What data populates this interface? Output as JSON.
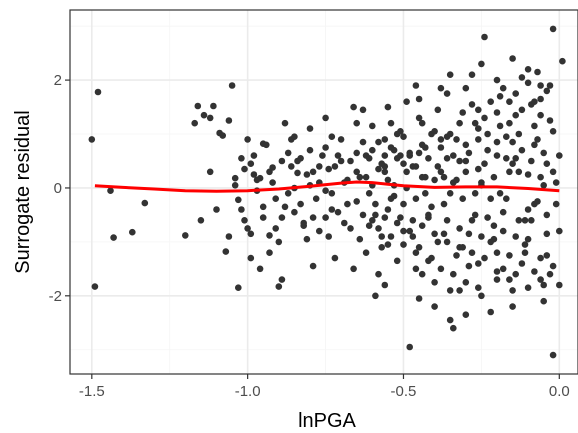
{
  "chart_data": {
    "type": "scatter",
    "xlabel": "lnPGA",
    "ylabel": "Surrogate residual",
    "xlim": [
      -1.57,
      0.06
    ],
    "ylim": [
      -3.45,
      3.3
    ],
    "x_ticks": [
      -1.5,
      -1.0,
      -0.5,
      0.0
    ],
    "x_tick_labels": [
      "-1.5",
      "-1.0",
      "-0.5",
      "0.0"
    ],
    "y_ticks": [
      -2,
      0,
      2
    ],
    "y_tick_labels": [
      "-2",
      "0",
      "2"
    ],
    "grid": true,
    "legend": "none",
    "colors": {
      "points": "#333333",
      "smooth": "#ff0000",
      "grid_major": "#ebebeb",
      "grid_minor": "#f5f5f5",
      "frame": "#333333"
    },
    "points": [
      [
        -1.5,
        0.9
      ],
      [
        -1.48,
        1.78
      ],
      [
        -1.49,
        -1.83
      ],
      [
        -1.44,
        -0.05
      ],
      [
        -1.43,
        -0.92
      ],
      [
        -1.37,
        -0.82
      ],
      [
        -1.33,
        -0.28
      ],
      [
        -1.2,
        -0.88
      ],
      [
        -1.17,
        1.2
      ],
      [
        -1.16,
        1.52
      ],
      [
        -1.14,
        1.35
      ],
      [
        -1.12,
        1.3
      ],
      [
        -1.11,
        1.52
      ],
      [
        -1.1,
        -0.4
      ],
      [
        -1.09,
        1.02
      ],
      [
        -1.08,
        0.97
      ],
      [
        -1.07,
        -1.18
      ],
      [
        -1.06,
        1.25
      ],
      [
        -1.05,
        1.9
      ],
      [
        -1.04,
        0.18
      ],
      [
        -1.03,
        -0.22
      ],
      [
        -1.02,
        0.55
      ],
      [
        -1.0,
        -0.75
      ],
      [
        -0.99,
        -1.3
      ],
      [
        -0.98,
        0.6
      ],
      [
        -0.96,
        0.18
      ],
      [
        -0.95,
        0.82
      ],
      [
        -0.93,
        -0.88
      ],
      [
        -0.92,
        0.38
      ],
      [
        -0.9,
        -1.83
      ],
      [
        -0.89,
        -1.7
      ],
      [
        -0.88,
        -0.35
      ],
      [
        -0.86,
        0.9
      ],
      [
        -0.84,
        0.28
      ],
      [
        -0.82,
        -0.65
      ],
      [
        -0.8,
        0.7
      ],
      [
        -0.79,
        -1.45
      ],
      [
        -0.77,
        0.1
      ],
      [
        -0.75,
        -0.55
      ],
      [
        -0.73,
        0.95
      ],
      [
        -0.72,
        -1.3
      ],
      [
        -0.7,
        0.5
      ],
      [
        -0.68,
        -0.3
      ],
      [
        -0.66,
        1.5
      ],
      [
        -0.65,
        0.65
      ],
      [
        -0.64,
        -0.95
      ],
      [
        -0.63,
        1.45
      ],
      [
        -0.62,
        0.2
      ],
      [
        -0.61,
        -0.7
      ],
      [
        -0.6,
        1.15
      ],
      [
        -0.59,
        -2.0
      ],
      [
        -0.58,
        0.35
      ],
      [
        -0.57,
        -1.1
      ],
      [
        -0.56,
        0.9
      ],
      [
        -0.55,
        -0.4
      ],
      [
        -0.54,
        1.2
      ],
      [
        -0.53,
        0.05
      ],
      [
        -0.52,
        -1.35
      ],
      [
        -0.51,
        0.6
      ],
      [
        -0.5,
        -0.8
      ],
      [
        -0.49,
        1.6
      ],
      [
        -0.48,
        -2.95
      ],
      [
        -0.47,
        0.4
      ],
      [
        -0.46,
        -0.2
      ],
      [
        -0.45,
        1.3
      ],
      [
        -0.44,
        -1.6
      ],
      [
        -0.43,
        0.75
      ],
      [
        -0.42,
        -0.55
      ],
      [
        -0.41,
        1.0
      ],
      [
        -0.4,
        0.15
      ],
      [
        -0.39,
        -1.0
      ],
      [
        -0.38,
        1.85
      ],
      [
        -0.37,
        -0.3
      ],
      [
        -0.36,
        0.55
      ],
      [
        -0.35,
        -2.45
      ],
      [
        -0.34,
        -2.6
      ],
      [
        -0.33,
        0.9
      ],
      [
        -0.32,
        -0.75
      ],
      [
        -0.31,
        1.4
      ],
      [
        -0.3,
        0.3
      ],
      [
        -0.29,
        -1.45
      ],
      [
        -0.28,
        2.1
      ],
      [
        -0.27,
        -0.1
      ],
      [
        -0.26,
        1.1
      ],
      [
        -0.25,
        -0.9
      ],
      [
        -0.24,
        2.8
      ],
      [
        -0.23,
        0.7
      ],
      [
        -0.22,
        -2.3
      ],
      [
        -0.21,
        0.2
      ],
      [
        -0.2,
        -1.2
      ],
      [
        -0.19,
        1.7
      ],
      [
        -0.18,
        -0.45
      ],
      [
        -0.17,
        0.95
      ],
      [
        -0.16,
        -1.7
      ],
      [
        -0.15,
        0.45
      ],
      [
        -0.14,
        1.35
      ],
      [
        -0.13,
        -0.6
      ],
      [
        -0.12,
        2.05
      ],
      [
        -0.11,
        -1.05
      ],
      [
        -0.1,
        0.25
      ],
      [
        -0.09,
        1.55
      ],
      [
        -0.08,
        -0.3
      ],
      [
        -0.07,
        2.15
      ],
      [
        -0.06,
        -1.3
      ],
      [
        -0.05,
        0.65
      ],
      [
        -0.04,
        -0.85
      ],
      [
        -0.03,
        1.9
      ],
      [
        -0.02,
        -3.1
      ],
      [
        -0.01,
        0.1
      ],
      [
        0.0,
        -1.8
      ],
      [
        0.01,
        2.35
      ],
      [
        -0.02,
        2.95
      ],
      [
        -0.05,
        -1.8
      ],
      [
        -0.08,
        1.15
      ],
      [
        -0.11,
        -1.2
      ],
      [
        -0.14,
        0.55
      ],
      [
        -0.17,
        -0.2
      ],
      [
        -0.2,
        0.85
      ],
      [
        -0.23,
        -0.55
      ],
      [
        -0.26,
        0.35
      ],
      [
        -0.29,
        -0.85
      ],
      [
        -0.32,
        0.5
      ],
      [
        -0.35,
        -0.1
      ],
      [
        -0.38,
        0.75
      ],
      [
        -0.41,
        -0.35
      ],
      [
        -0.44,
        0.2
      ],
      [
        -0.47,
        -0.6
      ],
      [
        -0.5,
        0.45
      ],
      [
        -0.53,
        -0.15
      ],
      [
        -0.56,
        0.3
      ],
      [
        -0.59,
        -0.5
      ],
      [
        -0.62,
        0.6
      ],
      [
        -0.65,
        -0.25
      ],
      [
        -0.68,
        0.15
      ],
      [
        -0.71,
        -0.45
      ],
      [
        -0.74,
        0.35
      ],
      [
        -0.77,
        -0.8
      ],
      [
        -0.8,
        0.05
      ],
      [
        -0.83,
        -0.3
      ],
      [
        -0.86,
        0.4
      ],
      [
        -0.89,
        -0.55
      ],
      [
        -0.92,
        0.1
      ],
      [
        -0.95,
        -0.35
      ],
      [
        -0.98,
        0.25
      ],
      [
        -1.01,
        -0.6
      ],
      [
        -0.97,
        -0.05
      ],
      [
        -0.91,
        -0.2
      ],
      [
        -0.85,
        0.0
      ],
      [
        -0.79,
        0.3
      ],
      [
        -0.73,
        -0.1
      ],
      [
        -0.67,
        0.5
      ],
      [
        -0.61,
        -0.1
      ],
      [
        -0.55,
        0.15
      ],
      [
        -0.49,
        0.0
      ],
      [
        -0.43,
        -0.1
      ],
      [
        -0.37,
        0.2
      ],
      [
        -0.31,
        -0.2
      ],
      [
        -0.25,
        0.05
      ],
      [
        -0.19,
        -0.1
      ],
      [
        -0.13,
        0.3
      ],
      [
        -0.07,
        -0.25
      ],
      [
        -0.04,
        0.45
      ],
      [
        -0.09,
        -0.6
      ],
      [
        -0.15,
        0.85
      ],
      [
        -0.21,
        -0.95
      ],
      [
        -0.27,
        1.2
      ],
      [
        -0.33,
        -1.25
      ],
      [
        -0.39,
        1.45
      ],
      [
        -0.45,
        -1.1
      ],
      [
        -0.51,
        1.05
      ],
      [
        -0.57,
        -0.9
      ],
      [
        -0.63,
        0.85
      ],
      [
        -0.69,
        -0.65
      ],
      [
        -0.75,
        0.75
      ],
      [
        -0.81,
        -0.95
      ],
      [
        -0.87,
        0.65
      ],
      [
        -0.93,
        -1.2
      ],
      [
        -0.99,
        0.45
      ],
      [
        -0.6,
        0.7
      ],
      [
        -0.58,
        0.85
      ],
      [
        -0.56,
        0.6
      ],
      [
        -0.54,
        0.75
      ],
      [
        -0.52,
        0.55
      ],
      [
        -0.5,
        0.95
      ],
      [
        -0.48,
        0.65
      ],
      [
        -0.46,
        0.4
      ],
      [
        -0.44,
        0.8
      ],
      [
        -0.42,
        0.55
      ],
      [
        -0.4,
        1.05
      ],
      [
        -0.38,
        0.3
      ],
      [
        -0.36,
        0.95
      ],
      [
        -0.34,
        0.6
      ],
      [
        -0.32,
        1.2
      ],
      [
        -0.3,
        0.8
      ],
      [
        -0.28,
        1.55
      ],
      [
        -0.26,
        0.9
      ],
      [
        -0.24,
        1.3
      ],
      [
        -0.22,
        1.6
      ],
      [
        -0.2,
        1.4
      ],
      [
        -0.18,
        1.85
      ],
      [
        -0.16,
        1.2
      ],
      [
        -0.14,
        1.75
      ],
      [
        -0.12,
        1.45
      ],
      [
        -0.1,
        1.95
      ],
      [
        -0.08,
        1.6
      ],
      [
        -0.06,
        1.35
      ],
      [
        -0.04,
        1.8
      ],
      [
        -0.02,
        1.05
      ],
      [
        -0.6,
        -0.6
      ],
      [
        -0.58,
        -0.75
      ],
      [
        -0.56,
        -0.55
      ],
      [
        -0.54,
        -0.9
      ],
      [
        -0.52,
        -0.65
      ],
      [
        -0.5,
        -1.05
      ],
      [
        -0.48,
        -0.8
      ],
      [
        -0.46,
        -1.2
      ],
      [
        -0.44,
        -0.7
      ],
      [
        -0.42,
        -1.35
      ],
      [
        -0.4,
        -0.85
      ],
      [
        -0.38,
        -1.5
      ],
      [
        -0.36,
        -1.0
      ],
      [
        -0.34,
        -1.6
      ],
      [
        -0.32,
        -1.1
      ],
      [
        -0.3,
        -1.75
      ],
      [
        -0.28,
        -1.2
      ],
      [
        -0.26,
        -1.85
      ],
      [
        -0.24,
        -1.3
      ],
      [
        -0.22,
        -1.0
      ],
      [
        -0.2,
        -1.55
      ],
      [
        -0.18,
        -0.8
      ],
      [
        -0.16,
        -1.25
      ],
      [
        -0.14,
        -1.6
      ],
      [
        -0.12,
        -1.4
      ],
      [
        -0.1,
        -0.95
      ],
      [
        -0.08,
        -1.55
      ],
      [
        -0.06,
        -1.7
      ],
      [
        -0.04,
        -1.25
      ],
      [
        -0.02,
        -1.45
      ],
      [
        -0.7,
        0.9
      ],
      [
        -0.72,
        0.4
      ],
      [
        -0.74,
        -0.9
      ],
      [
        -0.76,
        0.6
      ],
      [
        -0.78,
        -0.2
      ],
      [
        -0.8,
        1.1
      ],
      [
        -0.82,
        -0.7
      ],
      [
        -0.84,
        0.5
      ],
      [
        -0.88,
        1.2
      ],
      [
        -0.9,
        -1.0
      ],
      [
        -0.94,
        0.8
      ],
      [
        -0.96,
        -1.5
      ],
      [
        -1.0,
        0.9
      ],
      [
        -1.03,
        -1.85
      ],
      [
        -1.06,
        -0.9
      ],
      [
        -1.12,
        0.3
      ],
      [
        -1.15,
        -0.6
      ],
      [
        -0.66,
        -1.5
      ],
      [
        -0.64,
        0.2
      ],
      [
        -0.62,
        -1.2
      ],
      [
        -0.6,
        0.05
      ],
      [
        -0.58,
        -1.6
      ],
      [
        -0.56,
        0.4
      ],
      [
        -0.54,
        -0.2
      ],
      [
        -0.52,
        1.0
      ],
      [
        -0.5,
        -0.3
      ],
      [
        -0.48,
        0.6
      ],
      [
        -0.46,
        -1.5
      ],
      [
        -0.44,
        1.2
      ],
      [
        -0.42,
        -0.5
      ],
      [
        -0.4,
        -1.75
      ],
      [
        -0.38,
        0.9
      ],
      [
        -0.36,
        -0.6
      ],
      [
        -0.34,
        0.1
      ],
      [
        -0.32,
        -1.9
      ],
      [
        -0.3,
        0.5
      ],
      [
        -0.28,
        -0.6
      ],
      [
        -0.26,
        -1.4
      ],
      [
        -0.24,
        0.45
      ],
      [
        -0.22,
        -0.2
      ],
      [
        -0.2,
        0.6
      ],
      [
        -0.18,
        -1.5
      ],
      [
        -0.16,
        0.3
      ],
      [
        -0.14,
        -0.9
      ],
      [
        -0.12,
        0.7
      ],
      [
        -0.1,
        -0.4
      ],
      [
        -0.08,
        0.8
      ],
      [
        -0.06,
        0.2
      ],
      [
        -0.04,
        -0.5
      ],
      [
        -0.02,
        0.3
      ],
      [
        0.0,
        -0.8
      ],
      [
        0.0,
        0.6
      ],
      [
        -0.01,
        -0.3
      ],
      [
        -0.03,
        1.25
      ],
      [
        -0.05,
        0.05
      ],
      [
        -0.07,
        0.9
      ],
      [
        -0.09,
        0.5
      ],
      [
        -0.11,
        -0.6
      ],
      [
        -0.13,
        1.0
      ],
      [
        -0.15,
        -1.9
      ],
      [
        -0.17,
        0.55
      ],
      [
        -0.19,
        1.15
      ],
      [
        -0.21,
        -0.7
      ],
      [
        -0.23,
        1.0
      ],
      [
        -0.25,
        0.1
      ],
      [
        -0.27,
        -0.5
      ],
      [
        -0.29,
        0.65
      ],
      [
        -0.31,
        -1.1
      ],
      [
        -0.33,
        0.15
      ],
      [
        -0.35,
        1.0
      ],
      [
        -0.37,
        -0.85
      ],
      [
        -0.39,
        0.4
      ],
      [
        -0.41,
        -1.3
      ],
      [
        -0.43,
        0.2
      ],
      [
        -0.45,
        0.65
      ],
      [
        -0.47,
        -0.9
      ],
      [
        -0.49,
        0.3
      ],
      [
        -0.51,
        -0.55
      ],
      [
        -0.53,
        0.7
      ],
      [
        -0.55,
        -1.05
      ],
      [
        -0.57,
        0.45
      ],
      [
        -0.59,
        -0.3
      ],
      [
        -0.61,
        0.55
      ],
      [
        -0.63,
        -0.5
      ],
      [
        -0.65,
        0.3
      ],
      [
        -0.67,
        -0.75
      ],
      [
        -0.69,
        0.1
      ],
      [
        -0.71,
        0.6
      ],
      [
        -0.73,
        -0.4
      ],
      [
        -0.75,
        -0.05
      ],
      [
        -0.77,
        0.4
      ],
      [
        -0.79,
        -0.55
      ],
      [
        -0.81,
        0.25
      ],
      [
        -0.83,
        0.55
      ],
      [
        -0.85,
        -0.45
      ],
      [
        -0.87,
        -0.1
      ],
      [
        -0.89,
        0.5
      ],
      [
        -0.91,
        -0.75
      ],
      [
        -0.93,
        0.3
      ],
      [
        -0.95,
        -0.55
      ],
      [
        -0.97,
        0.15
      ],
      [
        -0.99,
        -0.85
      ],
      [
        -1.01,
        0.35
      ],
      [
        -1.02,
        -0.4
      ],
      [
        -1.04,
        0.05
      ],
      [
        -0.35,
        2.1
      ],
      [
        -0.3,
        1.85
      ],
      [
        -0.25,
        2.3
      ],
      [
        -0.2,
        2.0
      ],
      [
        -0.15,
        2.4
      ],
      [
        -0.1,
        2.2
      ],
      [
        -0.06,
        1.9
      ],
      [
        -0.45,
        1.65
      ],
      [
        -0.55,
        1.5
      ],
      [
        -0.65,
        1.2
      ],
      [
        -0.75,
        1.3
      ],
      [
        -0.85,
        0.95
      ],
      [
        -0.45,
        -2.05
      ],
      [
        -0.35,
        -1.9
      ],
      [
        -0.25,
        -2.0
      ],
      [
        -0.15,
        -2.2
      ],
      [
        -0.05,
        -2.1
      ],
      [
        -0.4,
        -2.2
      ],
      [
        -0.3,
        -2.35
      ],
      [
        -0.2,
        -1.7
      ],
      [
        -0.1,
        -1.85
      ],
      [
        -0.03,
        -1.6
      ],
      [
        -0.56,
        -1.8
      ],
      [
        -0.46,
        1.9
      ],
      [
        -0.36,
        1.75
      ],
      [
        -0.26,
        1.45
      ],
      [
        -0.16,
        1.6
      ],
      [
        -0.06,
        1.65
      ]
    ],
    "smooth": [
      [
        -1.49,
        0.04
      ],
      [
        -1.4,
        0.01
      ],
      [
        -1.3,
        -0.02
      ],
      [
        -1.2,
        -0.05
      ],
      [
        -1.1,
        -0.06
      ],
      [
        -1.0,
        -0.05
      ],
      [
        -0.9,
        -0.02
      ],
      [
        -0.8,
        0.03
      ],
      [
        -0.7,
        0.09
      ],
      [
        -0.65,
        0.11
      ],
      [
        -0.6,
        0.1
      ],
      [
        -0.55,
        0.07
      ],
      [
        -0.5,
        0.04
      ],
      [
        -0.4,
        0.01
      ],
      [
        -0.3,
        0.02
      ],
      [
        -0.2,
        0.02
      ],
      [
        -0.1,
        -0.01
      ],
      [
        0.0,
        -0.05
      ]
    ]
  }
}
